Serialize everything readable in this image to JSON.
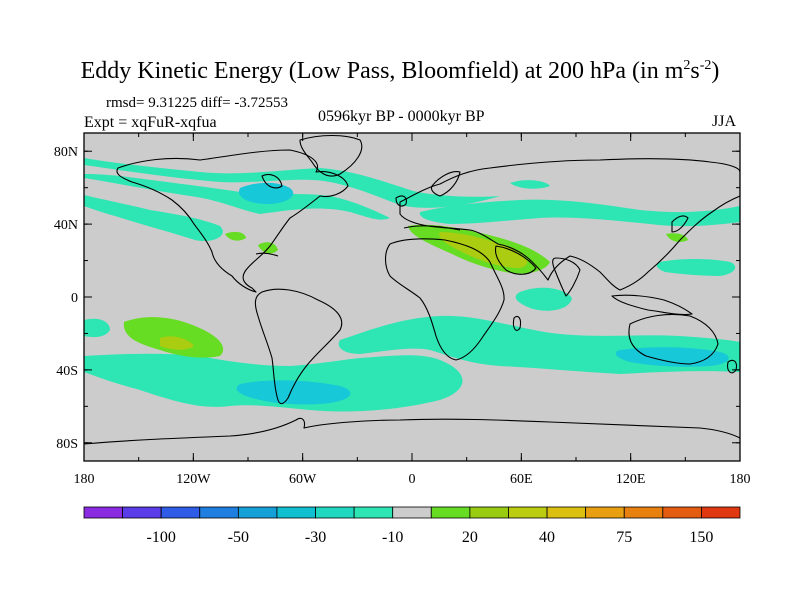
{
  "title": {
    "main": "Eddy Kinetic Energy (Low Pass, Bloomfield) at 200 hPa (in m",
    "sup1": "2",
    "mid": "s",
    "sup2": "-2",
    "close": ")"
  },
  "stats": {
    "rmsd_label": "rmsd= 9.31225",
    "diff_label": "diff= -3.72553"
  },
  "experiment": "Expt = xqFuR-xqfua",
  "period": "0596kyr BP - 0000kyr BP",
  "season": "JJA",
  "lat_ticks": [
    "80N",
    "40N",
    "0",
    "40S",
    "80S"
  ],
  "lon_ticks": [
    "180",
    "120W",
    "60W",
    "0",
    "60E",
    "120E",
    "180"
  ],
  "colorbar": {
    "colors": [
      "#8a2be2",
      "#5a3ce8",
      "#2e5ce6",
      "#1f7fe0",
      "#16a0d8",
      "#10c0d0",
      "#20d8c0",
      "#2ee6b4",
      "#cccccc",
      "#66dd22",
      "#99cc11",
      "#bbcc11",
      "#dcc011",
      "#e8a010",
      "#e88010",
      "#e45c10",
      "#e03810"
    ],
    "labels": [
      "-100",
      "-50",
      "-30",
      "-10",
      "20",
      "40",
      "75",
      "150"
    ]
  },
  "colors": {
    "land_ocean_zero": "#cccccc",
    "negative_light": "#2ee6b4",
    "negative_medium": "#16c8d8",
    "positive_light": "#66dd22",
    "positive_medium": "#aacc11"
  }
}
